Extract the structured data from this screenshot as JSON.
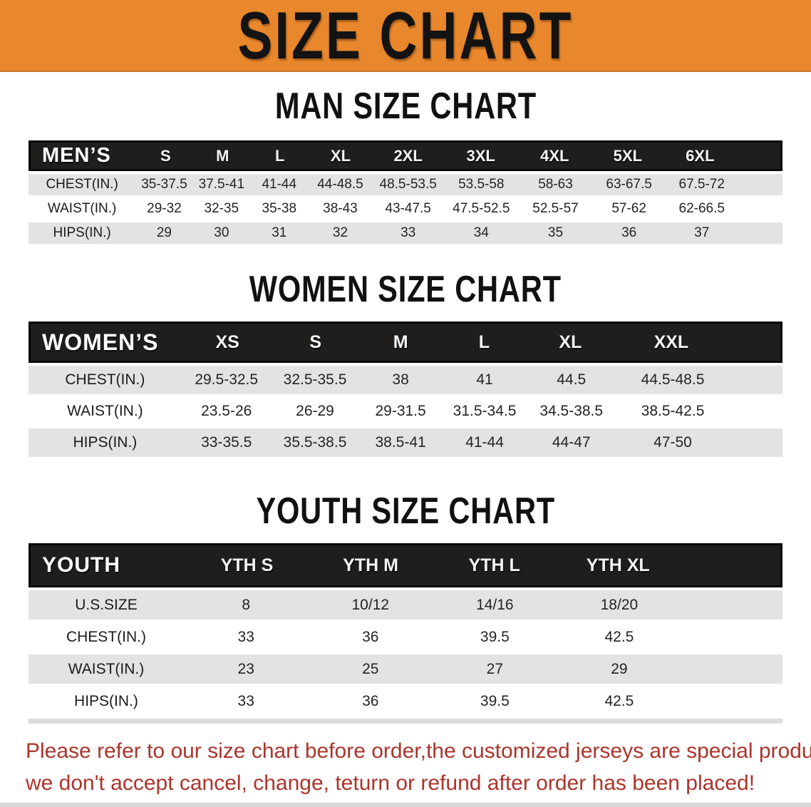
{
  "banner": {
    "title": "SIZE CHART",
    "bg_color": "#E8872B"
  },
  "sections": {
    "men": {
      "heading": "MAN SIZE CHART"
    },
    "women": {
      "heading": "WOMEN SIZE CHART"
    },
    "youth": {
      "heading": "YOUTH SIZE CHART"
    }
  },
  "tables": {
    "men": {
      "label": "MEN’S",
      "columns": [
        "S",
        "M",
        "L",
        "XL",
        "2XL",
        "3XL",
        "4XL",
        "5XL",
        "6XL"
      ],
      "rows": [
        {
          "label": "CHEST(IN.)",
          "values": [
            "35-37.5",
            "37.5-41",
            "41-44",
            "44-48.5",
            "48.5-53.5",
            "53.5-58",
            "58-63",
            "63-67.5",
            "67.5-72"
          ]
        },
        {
          "label": "WAIST(IN.)",
          "values": [
            "29-32",
            "32-35",
            "35-38",
            "38-43",
            "43-47.5",
            "47.5-52.5",
            "52.5-57",
            "57-62",
            "62-66.5"
          ]
        },
        {
          "label": "HIPS(IN.)",
          "values": [
            "29",
            "30",
            "31",
            "32",
            "33",
            "34",
            "35",
            "36",
            "37"
          ]
        }
      ]
    },
    "women": {
      "label": "WOMEN’S",
      "columns": [
        "XS",
        "S",
        "M",
        "L",
        "XL",
        "XXL"
      ],
      "rows": [
        {
          "label": "CHEST(IN.)",
          "values": [
            "29.5-32.5",
            "32.5-35.5",
            "38",
            "41",
            "44.5",
            "44.5-48.5"
          ]
        },
        {
          "label": "WAIST(IN.)",
          "values": [
            "23.5-26",
            "26-29",
            "29-31.5",
            "31.5-34.5",
            "34.5-38.5",
            "38.5-42.5"
          ]
        },
        {
          "label": "HIPS(IN.)",
          "values": [
            "33-35.5",
            "35.5-38.5",
            "38.5-41",
            "41-44",
            "44-47",
            "47-50"
          ]
        }
      ]
    },
    "youth": {
      "label": "YOUTH",
      "columns": [
        "YTH S",
        "YTH M",
        "YTH L",
        "YTH XL"
      ],
      "rows": [
        {
          "label": "U.S.SIZE",
          "values": [
            "8",
            "10/12",
            "14/16",
            "18/20"
          ]
        },
        {
          "label": "CHEST(IN.)",
          "values": [
            "33",
            "36",
            "39.5",
            "42.5"
          ]
        },
        {
          "label": "WAIST(IN.)",
          "values": [
            "23",
            "25",
            "27",
            "29"
          ]
        },
        {
          "label": "HIPS(IN.)",
          "values": [
            "33",
            "36",
            "39.5",
            "42.5"
          ]
        }
      ]
    }
  },
  "footer": {
    "line1": "Please refer to our size chart before order,the customized jerseys are special products,",
    "line2": "we don't accept cancel, change, teturn or refund after order has been placed!",
    "text_color": "#AC342B"
  },
  "colors": {
    "banner_orange": "#E8872B",
    "header_bar_black": "#201D1D",
    "row_shade_gray": "#E2E3E3",
    "disclaimer_red": "#AC342B"
  }
}
